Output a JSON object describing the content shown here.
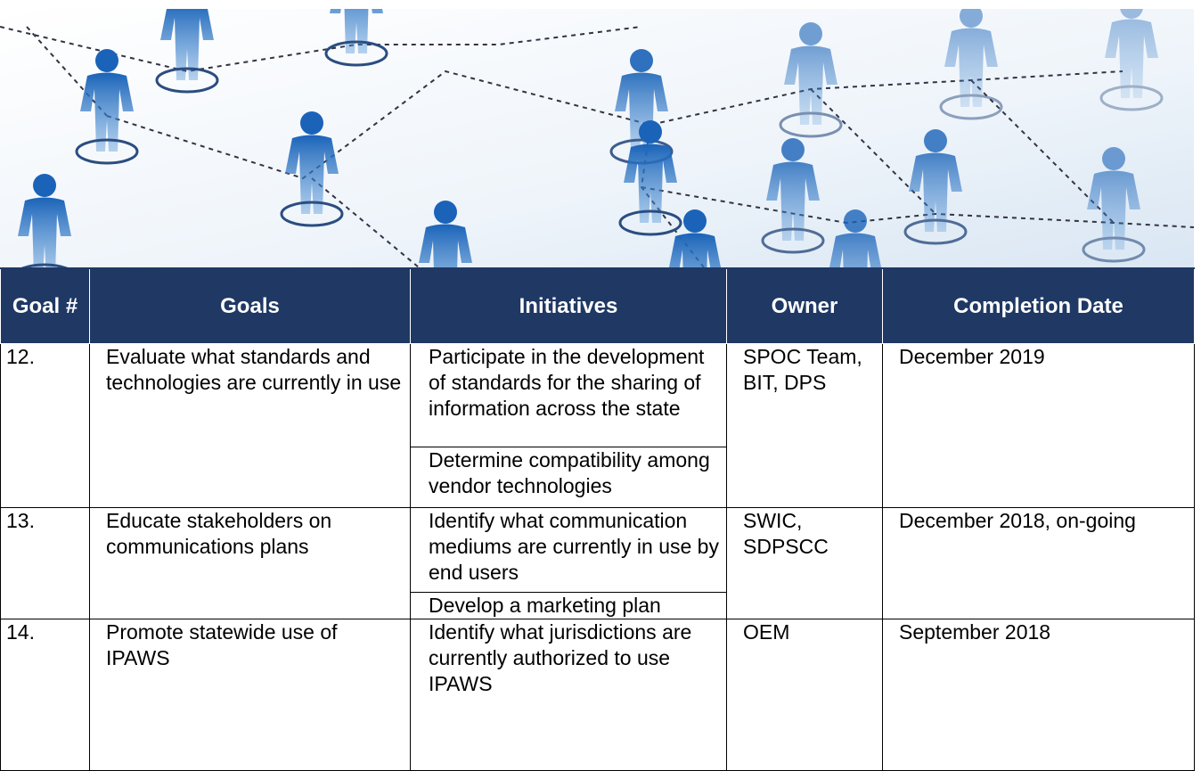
{
  "header": {
    "columns": [
      "Goal #",
      "Goals",
      "Initiatives",
      "Owner",
      "Completion Date"
    ]
  },
  "table": {
    "rows": [
      {
        "goal_num": "12.",
        "goal": "Evaluate what standards and technologies are currently in use",
        "initiatives": [
          "Participate in the development of standards for the sharing of information across the state",
          "Determine compatibility among vendor technologies"
        ],
        "owner": "SPOC Team, BIT, DPS",
        "completion_date": "December 2019"
      },
      {
        "goal_num": "13.",
        "goal": "Educate stakeholders on communications plans",
        "initiatives": [
          "Identify what communication mediums are currently in use by end users",
          "Develop a marketing plan"
        ],
        "owner": "SWIC, SDPSCC",
        "completion_date": "December 2018, on-going"
      },
      {
        "goal_num": "14.",
        "goal": "Promote statewide use of IPAWS",
        "initiatives": [
          "Identify what jurisdictions are currently authorized to use IPAWS"
        ],
        "owner": "OEM",
        "completion_date": "September 2018"
      }
    ]
  }
}
